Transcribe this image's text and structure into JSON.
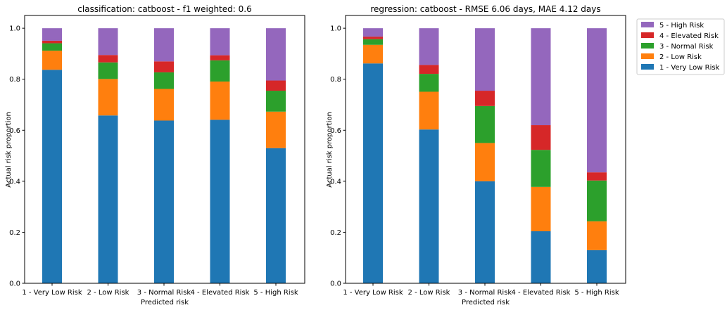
{
  "chart_data": [
    {
      "type": "bar",
      "stacked": true,
      "title": "classification: catboost - f1 weighted: 0.6",
      "xlabel": "Predicted risk",
      "ylabel": "Actual risk proportion",
      "ylim": [
        0,
        1.05
      ],
      "yticks": [
        "0.0",
        "0.2",
        "0.4",
        "0.6",
        "0.8",
        "1.0"
      ],
      "categories": [
        "1 - Very Low Risk",
        "2 - Low Risk",
        "3 - Normal Risk",
        "4 - Elevated Risk",
        "5 - High Risk"
      ],
      "series": [
        {
          "name": "1 - Very Low Risk",
          "color": "#1f77b4",
          "values": [
            0.837,
            0.658,
            0.638,
            0.641,
            0.53
          ]
        },
        {
          "name": "2 - Low Risk",
          "color": "#ff7f0e",
          "values": [
            0.075,
            0.143,
            0.124,
            0.15,
            0.143
          ]
        },
        {
          "name": "3 - Normal Risk",
          "color": "#2ca02c",
          "values": [
            0.029,
            0.065,
            0.065,
            0.083,
            0.082
          ]
        },
        {
          "name": "4 - Elevated Risk",
          "color": "#d62728",
          "values": [
            0.01,
            0.029,
            0.043,
            0.02,
            0.04
          ]
        },
        {
          "name": "5 - High Risk",
          "color": "#9467bd",
          "values": [
            0.049,
            0.105,
            0.13,
            0.106,
            0.205
          ]
        }
      ]
    },
    {
      "type": "bar",
      "stacked": true,
      "title": "regression: catboost - RMSE 6.06 days, MAE 4.12 days",
      "xlabel": "Predicted risk",
      "ylabel": "Actual risk proportion",
      "ylim": [
        0,
        1.05
      ],
      "yticks": [
        "0.0",
        "0.2",
        "0.4",
        "0.6",
        "0.8",
        "1.0"
      ],
      "categories": [
        "1 - Very Low Risk",
        "2 - Low Risk",
        "3 - Normal Risk",
        "4 - Elevated Risk",
        "5 - High Risk"
      ],
      "series": [
        {
          "name": "1 - Very Low Risk",
          "color": "#1f77b4",
          "values": [
            0.862,
            0.603,
            0.4,
            0.204,
            0.13
          ]
        },
        {
          "name": "2 - Low Risk",
          "color": "#ff7f0e",
          "values": [
            0.073,
            0.148,
            0.15,
            0.174,
            0.113
          ]
        },
        {
          "name": "3 - Normal Risk",
          "color": "#2ca02c",
          "values": [
            0.022,
            0.07,
            0.145,
            0.145,
            0.16
          ]
        },
        {
          "name": "4 - Elevated Risk",
          "color": "#d62728",
          "values": [
            0.01,
            0.035,
            0.06,
            0.097,
            0.032
          ]
        },
        {
          "name": "5 - High Risk",
          "color": "#9467bd",
          "values": [
            0.033,
            0.144,
            0.245,
            0.38,
            0.565
          ]
        }
      ]
    }
  ],
  "legend": {
    "placement": "outside-right-top",
    "entries": [
      {
        "label": "5 - High Risk",
        "color": "#9467bd"
      },
      {
        "label": "4 - Elevated Risk",
        "color": "#d62728"
      },
      {
        "label": "3 - Normal Risk",
        "color": "#2ca02c"
      },
      {
        "label": "2 - Low Risk",
        "color": "#ff7f0e"
      },
      {
        "label": "1 - Very Low Risk",
        "color": "#1f77b4"
      }
    ]
  }
}
